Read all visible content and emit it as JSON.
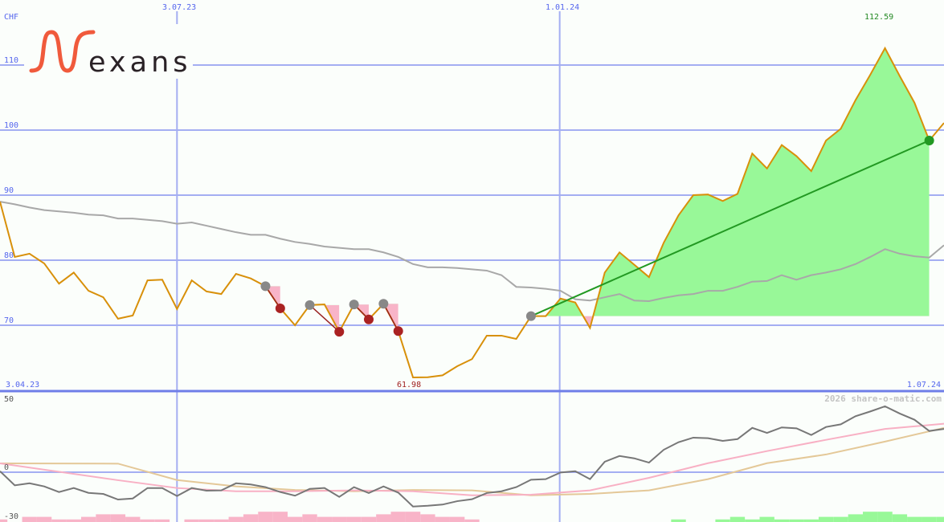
{
  "logo": {
    "brand": "Nexans",
    "text": "exans",
    "color": "#f05a3c"
  },
  "copyright": "2026 share-o-matic.com",
  "colors": {
    "grid": "#a4aef2",
    "axis": "#6f7ee8",
    "price": "#d8900a",
    "ma": "#a8a8a8",
    "gain_fill": "#98f898",
    "loss_fill": "#f8b4c8",
    "trend_line": "#229922",
    "loss_marker": "#aa2222",
    "entry_marker": "#888888",
    "osc": "#777777",
    "osc_fast": "#f8b0c4",
    "osc_slow": "#e4c898",
    "hist_neg": "#f8b4c8",
    "hist_pos": "#98f898"
  },
  "chart_data": [
    {
      "type": "line",
      "unit_label": "CHF",
      "y_ticks": [
        "110",
        "100",
        "90",
        "80",
        "70"
      ],
      "y_tick_values": [
        110,
        100,
        90,
        80,
        70
      ],
      "ylim": [
        60,
        120
      ],
      "x_ticks": [
        {
          "label": "3.04.23",
          "index": 0,
          "position": "bottom-left"
        },
        {
          "label": "3.07.23",
          "index": 12,
          "position": "top"
        },
        {
          "label": "1.01.24",
          "index": 38,
          "position": "top"
        },
        {
          "label": "1.07.24",
          "index": 64,
          "position": "bottom-right"
        }
      ],
      "grid": true,
      "max_label": {
        "text": "112.59",
        "index": 60,
        "value": 112.59,
        "color": "#228822"
      },
      "min_label": {
        "text": "61.98",
        "index": 28,
        "value": 61.98,
        "color": "#a02020"
      },
      "series": [
        {
          "role": "price",
          "values": [
            89.0,
            80.5,
            81.0,
            79.5,
            76.4,
            78.1,
            75.3,
            74.3,
            71.0,
            71.5,
            76.9,
            77.0,
            72.5,
            76.9,
            75.2,
            74.8,
            77.9,
            77.2,
            76.0,
            72.6,
            70.0,
            73.1,
            73.2,
            69.0,
            73.2,
            70.9,
            73.3,
            69.1,
            61.98,
            62.0,
            62.3,
            63.7,
            64.8,
            68.4,
            68.4,
            67.9,
            71.4,
            71.4,
            74.1,
            73.5,
            69.6,
            78.1,
            81.2,
            79.3,
            77.4,
            82.7,
            86.9,
            90.0,
            90.1,
            89.1,
            90.2,
            96.4,
            94.1,
            97.7,
            96.0,
            93.7,
            98.4,
            100.2,
            104.6,
            108.5,
            112.59,
            108.3,
            104.2,
            98.4,
            101.1
          ]
        },
        {
          "role": "moving-average",
          "values": [
            89.0,
            88.6,
            88.1,
            87.7,
            87.5,
            87.3,
            87.0,
            86.9,
            86.4,
            86.4,
            86.2,
            86.0,
            85.6,
            85.8,
            85.3,
            84.8,
            84.3,
            83.9,
            83.9,
            83.3,
            82.8,
            82.5,
            82.1,
            81.9,
            81.7,
            81.7,
            81.2,
            80.5,
            79.4,
            78.9,
            78.9,
            78.8,
            78.6,
            78.4,
            77.7,
            75.9,
            75.8,
            75.6,
            75.3,
            74.0,
            73.8,
            74.3,
            74.8,
            73.8,
            73.7,
            74.2,
            74.6,
            74.8,
            75.3,
            75.3,
            75.9,
            76.7,
            76.8,
            77.7,
            77.0,
            77.7,
            78.1,
            78.6,
            79.4,
            80.5,
            81.7,
            81.0,
            80.6,
            80.4,
            82.3
          ]
        }
      ],
      "trades": [
        {
          "entry": 18,
          "exit": 19
        },
        {
          "entry": 21,
          "exit": 23
        },
        {
          "entry": 24,
          "exit": 25
        },
        {
          "entry": 26,
          "exit": 27
        },
        {
          "entry": 36,
          "exit": 63
        }
      ]
    },
    {
      "type": "line",
      "y_ticks": [
        "50",
        "0",
        "-30"
      ],
      "y_tick_values": [
        50,
        0,
        -30
      ],
      "ylim": [
        -34,
        50
      ],
      "series": [
        {
          "role": "oscillator",
          "values": [
            0.7,
            -8.9,
            -7.5,
            -9.6,
            -13.4,
            -10.7,
            -14,
            -14.7,
            -18.5,
            -17.8,
            -10.7,
            -10.7,
            -16.1,
            -10.7,
            -12.5,
            -12.3,
            -7.5,
            -8.3,
            -10.1,
            -13.4,
            -15.9,
            -11.3,
            -10.7,
            -16.7,
            -10.1,
            -14.1,
            -9.6,
            -13.8,
            -23.2,
            -22.7,
            -21.9,
            -19.6,
            -18.3,
            -14.1,
            -12.9,
            -10.1,
            -5.1,
            -4.7,
            -0.2,
            0.7,
            -4.7,
            7.1,
            11,
            9.4,
            6.5,
            15.2,
            20.3,
            23.4,
            23,
            21.2,
            22.4,
            30,
            26.6,
            30.3,
            29.7,
            25.2,
            30.6,
            32.4,
            37.9,
            41.1,
            44.6,
            39.7,
            35.5,
            27.9,
            29.3
          ]
        },
        {
          "role": "signal-fast",
          "index": [
            0,
            8,
            12,
            16,
            20,
            24,
            28,
            32,
            36,
            40,
            44,
            48,
            52,
            56,
            60,
            64
          ],
          "values": [
            6,
            -5.4,
            -10.7,
            -12.9,
            -12.9,
            -12.3,
            -12.9,
            -15.6,
            -15.2,
            -12.3,
            -3.8,
            6.1,
            14.3,
            21.9,
            29.3,
            32.8
          ]
        },
        {
          "role": "signal-slow",
          "index": [
            0,
            8,
            12,
            16,
            20,
            24,
            28,
            32,
            36,
            40,
            44,
            48,
            52,
            56,
            60,
            64
          ],
          "values": [
            6,
            5.8,
            -5.3,
            -9.6,
            -12,
            -12.9,
            -12,
            -12.3,
            -15.6,
            -14.7,
            -12.3,
            -4.7,
            6.1,
            12,
            20.7,
            30
          ]
        },
        {
          "role": "histogram",
          "values": [
            -1,
            0,
            -2,
            -2,
            -1,
            -1,
            -2,
            -3,
            -3,
            -2,
            -1,
            -1,
            0,
            -1,
            -1,
            -1,
            -2,
            -3,
            -4,
            -4,
            -2,
            -3,
            -2,
            -2,
            -2,
            -2,
            -3,
            -4,
            -4,
            -3,
            -2,
            -2,
            -1,
            0,
            0,
            0,
            0,
            0,
            0,
            0,
            0,
            0,
            0,
            0,
            0,
            0,
            1,
            0,
            0,
            1,
            2,
            1,
            2,
            1,
            1,
            1,
            2,
            2,
            3,
            4,
            4,
            3,
            2,
            2,
            2
          ]
        }
      ]
    }
  ]
}
